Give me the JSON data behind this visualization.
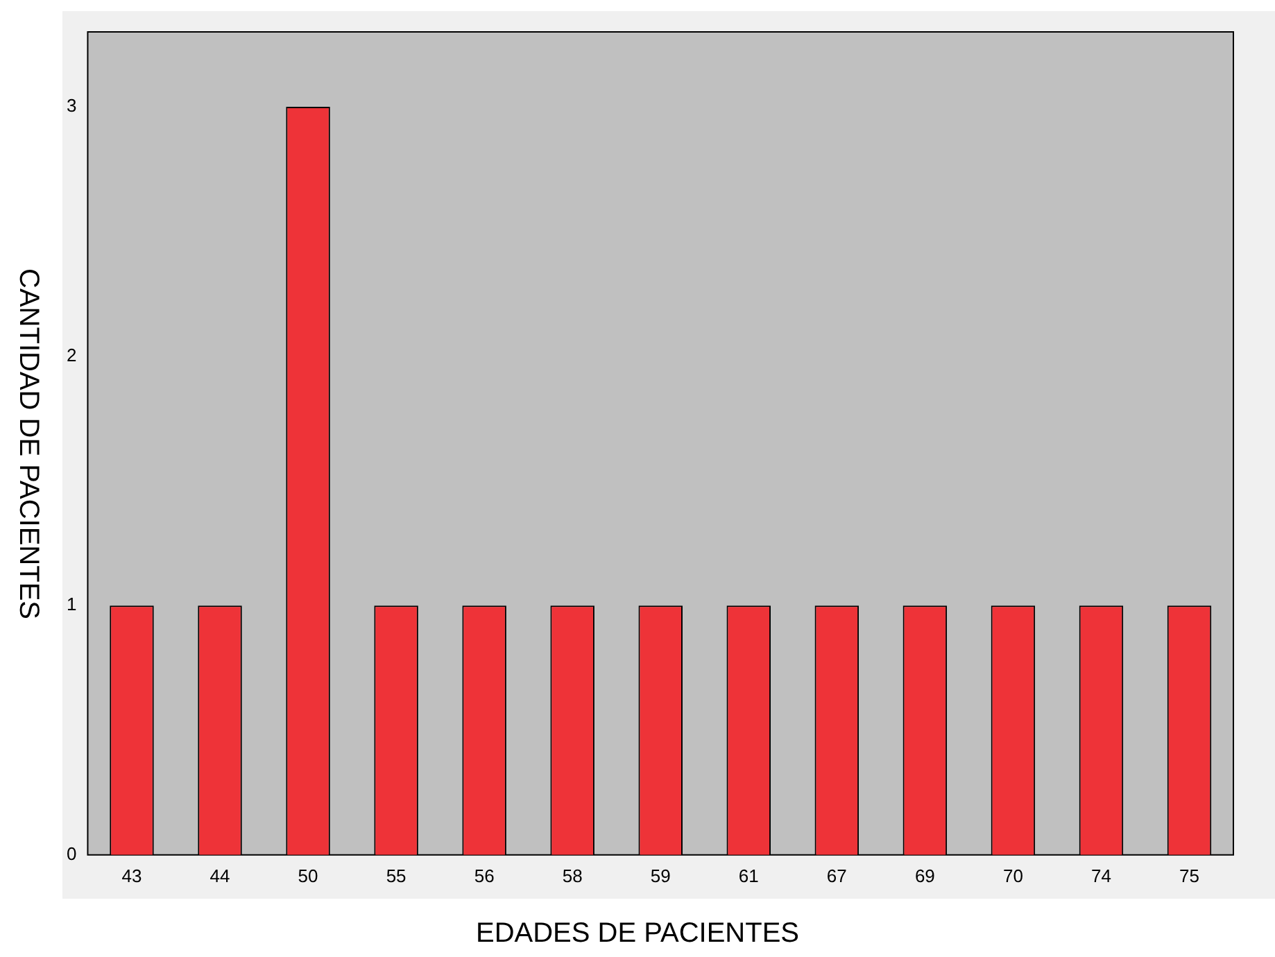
{
  "chart_data": {
    "type": "bar",
    "xlabel": "EDADES DE PACIENTES",
    "ylabel": "CANTIDAD DE PACIENTES",
    "categories": [
      "43",
      "44",
      "50",
      "55",
      "56",
      "58",
      "59",
      "61",
      "67",
      "69",
      "70",
      "74",
      "75"
    ],
    "values": [
      1,
      1,
      3,
      1,
      1,
      1,
      1,
      1,
      1,
      1,
      1,
      1,
      1
    ],
    "color": "#ee3338",
    "ylim": [
      0,
      3.3
    ],
    "yticks": [
      0,
      1,
      2,
      3
    ],
    "grid": false,
    "legend": false
  }
}
